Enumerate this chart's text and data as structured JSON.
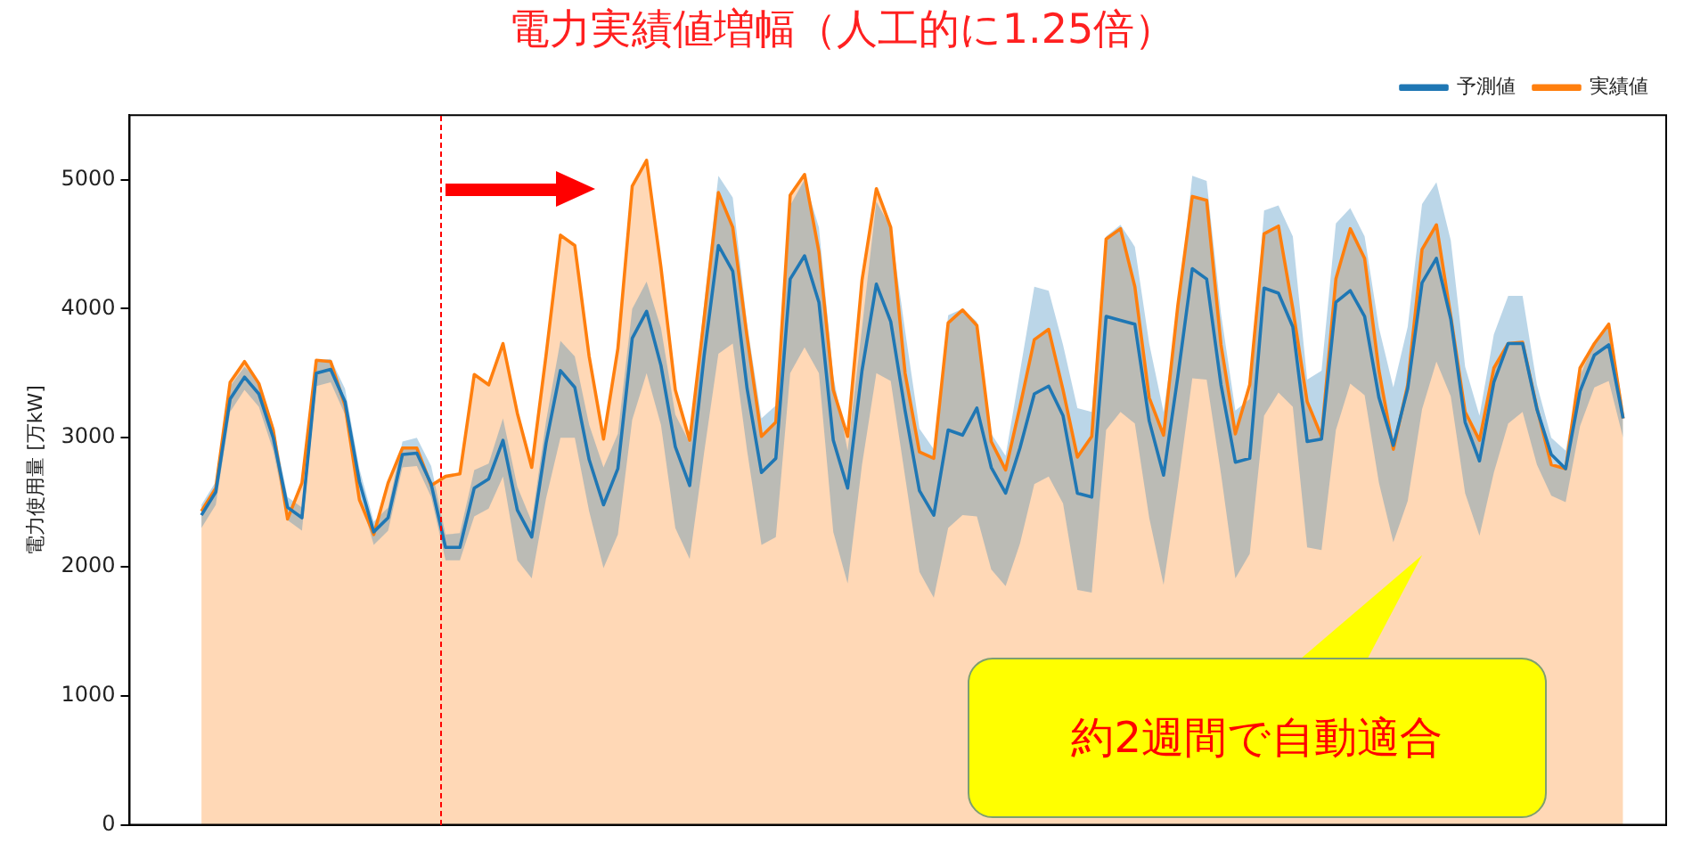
{
  "chart_data": {
    "type": "line",
    "title": "電力実績値増幅（人工的に1.25倍）",
    "ylabel": "電力使用量 [万kW]",
    "ylim": [
      0,
      5500
    ],
    "yticks": [
      0,
      1000,
      2000,
      3000,
      4000,
      5000
    ],
    "tick_labels": "y",
    "grid": false,
    "legend": "top right",
    "marker": "none",
    "line_style": "solid",
    "annotations": [
      "約2週間で自動適合"
    ],
    "categories": [
      null,
      null,
      null,
      null,
      null,
      null,
      null,
      null,
      null,
      null,
      null,
      null,
      null,
      null,
      null,
      null,
      null,
      null,
      null,
      null,
      null,
      null,
      null,
      null,
      null,
      null,
      null,
      null,
      null,
      null,
      null,
      null,
      null,
      null,
      null,
      null,
      null,
      null,
      null,
      null,
      null,
      null,
      null,
      null,
      null,
      null,
      null,
      null,
      null,
      null,
      null,
      null,
      null,
      null,
      null,
      null,
      null,
      null,
      null,
      null,
      null,
      null,
      null,
      null,
      null,
      null,
      null,
      null,
      null,
      null,
      null,
      null,
      null,
      null,
      null,
      null,
      null,
      null,
      null,
      null,
      null,
      null,
      null,
      null,
      null,
      null,
      null,
      null,
      null,
      null,
      null,
      null,
      null,
      null,
      null,
      null,
      null,
      null,
      null,
      null,
      null,
      null,
      null,
      null,
      null,
      null,
      null,
      null
    ],
    "series": [
      {
        "name": "予測値",
        "color": "#1f77b4",
        "values": [
          null,
          null,
          null,
          null,
          null,
          2400,
          2580,
          3300,
          3470,
          3340,
          3000,
          2460,
          2380,
          3500,
          3530,
          3280,
          2660,
          2270,
          2380,
          2870,
          2880,
          2640,
          2150,
          2150,
          2610,
          2680,
          2980,
          2440,
          2230,
          2960,
          3520,
          3390,
          2830,
          2480,
          2760,
          3770,
          3980,
          3560,
          2930,
          2630,
          3630,
          4490,
          4290,
          3380,
          2730,
          2840,
          4230,
          4410,
          4050,
          2980,
          2610,
          3520,
          4190,
          3900,
          3210,
          2590,
          2400,
          3060,
          3020,
          3230,
          2770,
          2570,
          2920,
          3340,
          3400,
          3170,
          2570,
          2540,
          3940,
          3910,
          3880,
          3130,
          2710,
          3480,
          4310,
          4230,
          3410,
          2810,
          2840,
          4160,
          4120,
          3860,
          2970,
          2990,
          4050,
          4140,
          3940,
          3310,
          2940,
          3380,
          4200,
          4390,
          3920,
          3120,
          2820,
          3430,
          3730,
          3730,
          3220,
          2870,
          2760,
          3360,
          3640,
          3720,
          3150,
          null,
          null,
          null
        ],
        "lower": [
          null,
          null,
          null,
          null,
          null,
          2300,
          2480,
          3200,
          3370,
          3240,
          2900,
          2360,
          2280,
          3400,
          3430,
          3180,
          2560,
          2170,
          2280,
          2770,
          2780,
          2540,
          2050,
          2050,
          2390,
          2450,
          2700,
          2050,
          1910,
          2530,
          3000,
          3000,
          2430,
          1990,
          2250,
          3140,
          3500,
          3100,
          2300,
          2060,
          2880,
          3650,
          3730,
          2900,
          2170,
          2230,
          3500,
          3700,
          3500,
          2270,
          1870,
          2790,
          3500,
          3440,
          2700,
          1960,
          1760,
          2300,
          2400,
          2390,
          1980,
          1850,
          2180,
          2640,
          2700,
          2490,
          1820,
          1800,
          3060,
          3200,
          3110,
          2380,
          1860,
          2630,
          3460,
          3450,
          2720,
          1910,
          2100,
          3170,
          3350,
          3240,
          2150,
          2130,
          3060,
          3420,
          3330,
          2650,
          2190,
          2510,
          3220,
          3590,
          3320,
          2570,
          2240,
          2730,
          3110,
          3200,
          2790,
          2550,
          2500,
          3090,
          3390,
          3440,
          3000,
          null,
          null,
          null
        ],
        "upper": [
          null,
          null,
          null,
          null,
          null,
          2480,
          2660,
          3400,
          3550,
          3440,
          3100,
          2540,
          2460,
          3600,
          3610,
          3380,
          2760,
          2350,
          2460,
          2970,
          3000,
          2780,
          2250,
          2260,
          2750,
          2800,
          3150,
          2620,
          2350,
          3130,
          3750,
          3630,
          3100,
          2770,
          3030,
          4000,
          4210,
          3850,
          3180,
          2960,
          4030,
          5030,
          4860,
          3880,
          3150,
          3250,
          4800,
          5000,
          4630,
          3480,
          2900,
          3850,
          4830,
          4630,
          3830,
          3070,
          2910,
          3950,
          4000,
          3900,
          3030,
          2860,
          3510,
          4170,
          4140,
          3720,
          3230,
          3200,
          4560,
          4650,
          4480,
          3730,
          3200,
          3990,
          5030,
          4990,
          3960,
          3210,
          3300,
          4760,
          4800,
          4560,
          3450,
          3520,
          4660,
          4780,
          4560,
          3850,
          3390,
          3860,
          4810,
          4980,
          4530,
          3550,
          3170,
          3800,
          4100,
          4100,
          3410,
          3000,
          2900,
          3480,
          3740,
          3880,
          3250,
          null,
          null,
          null
        ]
      },
      {
        "name": "実績値",
        "type": "area",
        "color": "#ff7f0e",
        "values": [
          null,
          null,
          null,
          null,
          null,
          2430,
          2610,
          3430,
          3590,
          3420,
          3060,
          2370,
          2650,
          3600,
          3590,
          3250,
          2520,
          2250,
          2650,
          2920,
          2920,
          2630,
          2700,
          2720,
          3490,
          3410,
          3730,
          3190,
          2770,
          3640,
          4570,
          4490,
          3630,
          2990,
          3690,
          4950,
          5150,
          4320,
          3370,
          2980,
          3920,
          4900,
          4630,
          3780,
          3010,
          3120,
          4880,
          5040,
          4440,
          3370,
          3010,
          4220,
          4930,
          4630,
          3500,
          2890,
          2840,
          3890,
          3990,
          3870,
          2970,
          2750,
          3240,
          3760,
          3840,
          3370,
          2850,
          3010,
          4540,
          4620,
          4170,
          3310,
          3020,
          4030,
          4870,
          4840,
          3720,
          3030,
          3410,
          4580,
          4640,
          4000,
          3280,
          3010,
          4230,
          4620,
          4390,
          3520,
          2910,
          3410,
          4460,
          4650,
          3940,
          3200,
          2980,
          3540,
          3730,
          3740,
          3230,
          2790,
          2760,
          3540,
          3730,
          3880,
          3150,
          null,
          null,
          null
        ]
      }
    ]
  }
}
